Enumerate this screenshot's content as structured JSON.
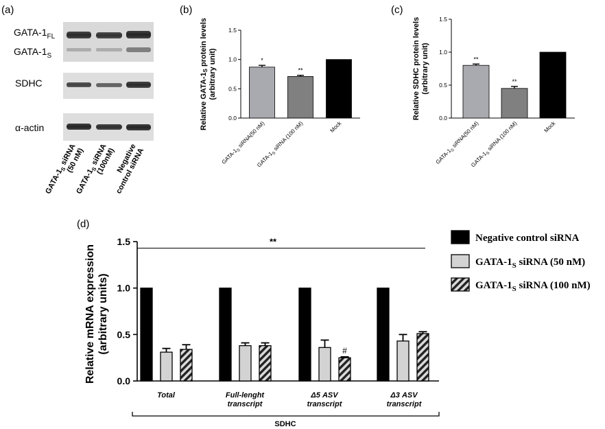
{
  "panels": {
    "a": {
      "label": "(a)",
      "band_labels": [
        {
          "text": "GATA-1",
          "sub": "FL"
        },
        {
          "text": "GATA-1",
          "sub": "S"
        },
        {
          "text": "SDHC",
          "sub": ""
        },
        {
          "text": "α-actin",
          "sub": ""
        }
      ],
      "lanes": [
        {
          "line1": "GATA-1",
          "sub": "S",
          "line1b": " siRNA",
          "line2": "(50 nM)"
        },
        {
          "line1": "GATA-1",
          "sub": "S",
          "line1b": " siRNA",
          "line2": "(100nM)"
        },
        {
          "line1": "Negative",
          "sub": "",
          "line1b": "",
          "line2": "control siRNA"
        }
      ]
    },
    "b": {
      "label": "(b)"
    },
    "c": {
      "label": "(c)"
    },
    "d": {
      "label": "(d)"
    }
  },
  "chart_data": [
    {
      "id": "b",
      "type": "bar",
      "ylabel_line1": "Relative GATA-1",
      "ylabel_sub": "S",
      "ylabel_line1b": " protein levels",
      "ylabel_line2": "(arbitrary unit)",
      "ylim": [
        0,
        1.5
      ],
      "yticks": [
        "0.0",
        "0.5",
        "1.0",
        "1.5"
      ],
      "categories": [
        {
          "pre": "GATA-1",
          "sub": "S",
          "post": " siRNA(50 nM)"
        },
        {
          "pre": "GATA-1",
          "sub": "S",
          "post": " siRNA (100 nM)"
        },
        {
          "pre": "Mock",
          "sub": "",
          "post": ""
        }
      ],
      "values": [
        0.87,
        0.71,
        1.0
      ],
      "errors": [
        0.03,
        0.02,
        0
      ],
      "significance": [
        "*",
        "**",
        ""
      ],
      "colors": [
        "#a9a9b0",
        "#808080",
        "#000000"
      ]
    },
    {
      "id": "c",
      "type": "bar",
      "ylabel_line1": "Relative SDHC protein levels",
      "ylabel_sub": "",
      "ylabel_line1b": "",
      "ylabel_line2": "(arbitrary unit)",
      "ylim": [
        0,
        1.5
      ],
      "yticks": [
        "0.0",
        "0.5",
        "1.0",
        "1.5"
      ],
      "categories": [
        {
          "pre": "GATA-1",
          "sub": "S",
          "post": " siRNA(50 nM)"
        },
        {
          "pre": "GATA-1",
          "sub": "S",
          "post": " siRNA (100 nM)"
        },
        {
          "pre": "Mock",
          "sub": "",
          "post": ""
        }
      ],
      "values": [
        0.8,
        0.45,
        1.0
      ],
      "errors": [
        0.02,
        0.03,
        0
      ],
      "significance": [
        "**",
        "**",
        ""
      ],
      "colors": [
        "#a9a9b0",
        "#808080",
        "#000000"
      ]
    },
    {
      "id": "d",
      "type": "bar",
      "ylabel_line1": "Relative mRNA expression",
      "ylabel_line2": "(arbitrary units)",
      "ylim": [
        0,
        1.5
      ],
      "yticks": [
        "0.0",
        "0.5",
        "1.0",
        "1.5"
      ],
      "categories": [
        {
          "line1": "Total",
          "line2": ""
        },
        {
          "line1": "Full-lenght",
          "line2": "transcript"
        },
        {
          "line1": "Δ5 ASV",
          "line2": "transcript"
        },
        {
          "line1": "Δ3 ASV",
          "line2": "transcript"
        }
      ],
      "group_label": "SDHC",
      "overall_significance": "**",
      "series": [
        {
          "name_pre": "Negative control siRNA",
          "name_sub": "",
          "name_post": "",
          "values": [
            1.0,
            1.0,
            1.0,
            1.0
          ],
          "errors": [
            0,
            0,
            0,
            0
          ],
          "style": "solid-black",
          "marks": [
            "",
            "",
            "",
            ""
          ]
        },
        {
          "name_pre": "GATA-1",
          "name_sub": "S",
          "name_post": " siRNA (50 nM)",
          "values": [
            0.31,
            0.38,
            0.36,
            0.43
          ],
          "errors": [
            0.04,
            0.03,
            0.08,
            0.07
          ],
          "style": "light-gray",
          "marks": [
            "",
            "",
            "",
            ""
          ]
        },
        {
          "name_pre": "GATA-1",
          "name_sub": "S",
          "name_post": " siRNA (100 nM)",
          "values": [
            0.34,
            0.38,
            0.25,
            0.51
          ],
          "errors": [
            0.05,
            0.03,
            0.01,
            0.02
          ],
          "style": "hatched",
          "marks": [
            "",
            "",
            "#",
            ""
          ]
        }
      ]
    }
  ]
}
